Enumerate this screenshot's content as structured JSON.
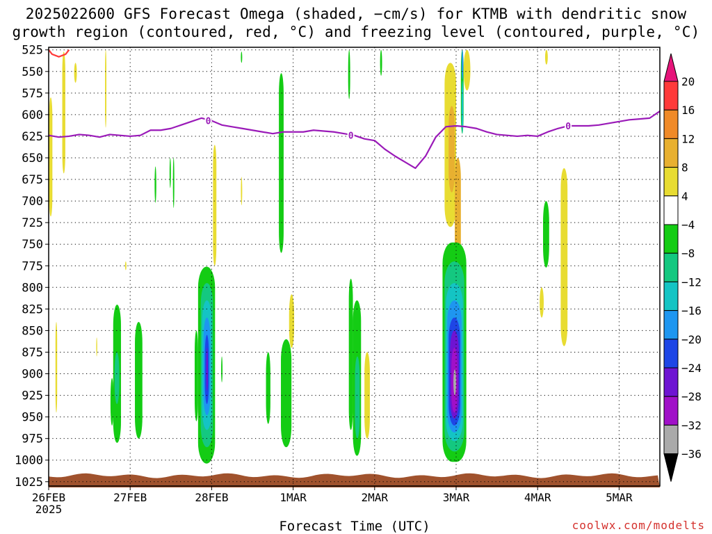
{
  "title": {
    "line1": "2025022600 GFS Forecast Omega (shaded, −cm/s) for KTMB with dendritic snow",
    "line2": "growth region (contoured, red, °C) and freezing level (contoured, purple, °C)"
  },
  "xlabel": "Forecast Time (UTC)",
  "credit": "coolwx.com/modelts",
  "chart_data": {
    "type": "heatmap",
    "title": "2025022600 GFS Forecast Omega (shaded, −cm/s) for KTMB with dendritic snow growth region (contoured, red, °C) and freezing level (contoured, purple, °C)",
    "xlabel": "Forecast Time (UTC)",
    "ylabel": "",
    "y_ticks_hpa": [
      525,
      550,
      575,
      600,
      625,
      650,
      675,
      700,
      725,
      750,
      775,
      800,
      825,
      850,
      875,
      900,
      925,
      950,
      975,
      1000,
      1025
    ],
    "x_ticks": [
      {
        "label": "26FEB",
        "sublabel": "2025",
        "hours": 0
      },
      {
        "label": "27FEB",
        "hours": 24
      },
      {
        "label": "28FEB",
        "hours": 48
      },
      {
        "label": "1MAR",
        "hours": 72
      },
      {
        "label": "2MAR",
        "hours": 96
      },
      {
        "label": "3MAR",
        "hours": 120
      },
      {
        "label": "4MAR",
        "hours": 144
      },
      {
        "label": "5MAR",
        "hours": 168
      }
    ],
    "xlim_hours": [
      0,
      180
    ],
    "ylim_hpa": [
      522,
      1030
    ],
    "grid": true,
    "colorbar": {
      "ticks": [
        20,
        16,
        12,
        8,
        4,
        -4,
        -8,
        -12,
        -16,
        -20,
        -24,
        -28,
        -32,
        -36
      ],
      "bins": [
        {
          "from": 16,
          "to": 20,
          "color": "#ff3a3a"
        },
        {
          "from": 12,
          "to": 16,
          "color": "#f08a28"
        },
        {
          "from": 8,
          "to": 12,
          "color": "#e8b030"
        },
        {
          "from": 4,
          "to": 8,
          "color": "#e8dc32"
        },
        {
          "from": -4,
          "to": 4,
          "color": "#ffffff"
        },
        {
          "from": -8,
          "to": -4,
          "color": "#14cc14"
        },
        {
          "from": -12,
          "to": -8,
          "color": "#14c880"
        },
        {
          "from": -16,
          "to": -12,
          "color": "#14c4c4"
        },
        {
          "from": -20,
          "to": -16,
          "color": "#1e96f0"
        },
        {
          "from": -24,
          "to": -20,
          "color": "#1e46e6"
        },
        {
          "from": -28,
          "to": -24,
          "color": "#6e14d2"
        },
        {
          "from": -32,
          "to": -28,
          "color": "#a010c8"
        },
        {
          "from": -36,
          "to": -32,
          "color": "#aaaaaa"
        }
      ],
      "over_color": "#e6147a",
      "under_color": "#000000"
    },
    "freezing_level": {
      "label": "0",
      "color": "#9a1ab8",
      "hours": [
        0,
        3,
        6,
        9,
        12,
        15,
        18,
        21,
        24,
        27,
        30,
        33,
        36,
        39,
        42,
        45,
        48,
        51,
        54,
        57,
        60,
        63,
        66,
        69,
        72,
        75,
        78,
        81,
        84,
        87,
        90,
        93,
        96,
        99,
        102,
        105,
        108,
        111,
        114,
        117,
        120,
        123,
        126,
        129,
        132,
        135,
        138,
        141,
        144,
        147,
        150,
        153,
        156,
        159,
        162,
        165,
        168,
        171,
        174,
        177,
        180
      ],
      "hpa": [
        624,
        626,
        625,
        623,
        624,
        626,
        623,
        624,
        625,
        624,
        618,
        618,
        616,
        612,
        608,
        604,
        607,
        612,
        614,
        616,
        618,
        620,
        622,
        620,
        620,
        620,
        618,
        619,
        620,
        622,
        624,
        628,
        630,
        640,
        648,
        655,
        662,
        648,
        626,
        614,
        613,
        614,
        616,
        620,
        623,
        624,
        625,
        624,
        625,
        620,
        616,
        613,
        613,
        613,
        612,
        610,
        608,
        606,
        605,
        604,
        596
      ]
    },
    "dendritic_contour": {
      "color": "#ff3a3a",
      "hours": [
        0,
        1,
        3,
        5,
        6
      ],
      "hpa": [
        525,
        530,
        533,
        530,
        525
      ]
    },
    "surface_color": "#a0522d",
    "omega_cells": [
      {
        "h0": 0.1,
        "h1": 1.1,
        "p_top": 580,
        "p_bot": 718,
        "v": 5
      },
      {
        "h0": 4.0,
        "h1": 4.9,
        "p_top": 527,
        "p_bot": 668,
        "v": 5
      },
      {
        "h0": 7.5,
        "h1": 8.3,
        "p_top": 540,
        "p_bot": 563,
        "v": 5
      },
      {
        "h0": 2.0,
        "h1": 2.5,
        "p_top": 840,
        "p_bot": 945,
        "v": 5
      },
      {
        "h0": 16.6,
        "h1": 17.0,
        "p_top": 525,
        "p_bot": 615,
        "v": 5
      },
      {
        "h0": 14.0,
        "h1": 14.3,
        "p_top": 858,
        "p_bot": 880,
        "v": 5
      },
      {
        "h0": 22.5,
        "h1": 22.9,
        "p_top": 770,
        "p_bot": 780,
        "v": 5
      },
      {
        "h0": 31.2,
        "h1": 31.7,
        "p_top": 660,
        "p_bot": 702,
        "v": -5
      },
      {
        "h0": 35.6,
        "h1": 36.0,
        "p_top": 650,
        "p_bot": 685,
        "v": -5
      },
      {
        "h0": 36.6,
        "h1": 37.0,
        "p_top": 650,
        "p_bot": 708,
        "v": -5
      },
      {
        "h0": 18.2,
        "h1": 19.1,
        "p_top": 905,
        "p_bot": 960,
        "v": -5
      },
      {
        "h0": 19.0,
        "h1": 21.3,
        "p_top": 820,
        "p_bot": 980,
        "v": -5
      },
      {
        "h0": 19.4,
        "h1": 20.8,
        "p_top": 875,
        "p_bot": 935,
        "v": -10
      },
      {
        "h0": 25.4,
        "h1": 27.6,
        "p_top": 840,
        "p_bot": 975,
        "v": -5
      },
      {
        "h0": 43.0,
        "h1": 44.0,
        "p_top": 850,
        "p_bot": 955,
        "v": -5
      },
      {
        "h0": 44.0,
        "h1": 49.0,
        "p_top": 776,
        "p_bot": 1004,
        "v": -5
      },
      {
        "h0": 44.8,
        "h1": 48.4,
        "p_top": 795,
        "p_bot": 985,
        "v": -10
      },
      {
        "h0": 45.2,
        "h1": 48.0,
        "p_top": 815,
        "p_bot": 965,
        "v": -14
      },
      {
        "h0": 45.6,
        "h1": 47.6,
        "p_top": 835,
        "p_bot": 948,
        "v": -18
      },
      {
        "h0": 46.0,
        "h1": 47.2,
        "p_top": 855,
        "p_bot": 935,
        "v": -22
      },
      {
        "h0": 46.4,
        "h1": 46.9,
        "p_top": 870,
        "p_bot": 920,
        "v": -26
      },
      {
        "h0": 48.4,
        "h1": 49.4,
        "p_top": 635,
        "p_bot": 775,
        "v": 5
      },
      {
        "h0": 50.8,
        "h1": 51.2,
        "p_top": 880,
        "p_bot": 910,
        "v": -5
      },
      {
        "h0": 56.6,
        "h1": 57.0,
        "p_top": 527,
        "p_bot": 540,
        "v": -5
      },
      {
        "h0": 56.6,
        "h1": 57.0,
        "p_top": 672,
        "p_bot": 705,
        "v": 5
      },
      {
        "h0": 64.0,
        "h1": 65.3,
        "p_top": 875,
        "p_bot": 958,
        "v": -5
      },
      {
        "h0": 67.8,
        "h1": 69.2,
        "p_top": 552,
        "p_bot": 760,
        "v": -5
      },
      {
        "h0": 68.4,
        "h1": 71.5,
        "p_top": 860,
        "p_bot": 985,
        "v": -5
      },
      {
        "h0": 70.8,
        "h1": 72.3,
        "p_top": 808,
        "p_bot": 870,
        "v": 5
      },
      {
        "h0": 88.2,
        "h1": 88.8,
        "p_top": 525,
        "p_bot": 582,
        "v": -5
      },
      {
        "h0": 97.6,
        "h1": 98.2,
        "p_top": 525,
        "p_bot": 555,
        "v": -5
      },
      {
        "h0": 88.4,
        "h1": 89.6,
        "p_top": 790,
        "p_bot": 965,
        "v": -5
      },
      {
        "h0": 89.6,
        "h1": 92.0,
        "p_top": 815,
        "p_bot": 995,
        "v": -5
      },
      {
        "h0": 90.2,
        "h1": 91.6,
        "p_top": 880,
        "p_bot": 975,
        "v": -10
      },
      {
        "h0": 93.0,
        "h1": 94.6,
        "p_top": 875,
        "p_bot": 975,
        "v": 5
      },
      {
        "h0": 116.6,
        "h1": 120.0,
        "p_top": 540,
        "p_bot": 730,
        "v": 5
      },
      {
        "h0": 117.8,
        "h1": 119.6,
        "p_top": 590,
        "p_bot": 690,
        "v": 9
      },
      {
        "h0": 119.6,
        "h1": 121.4,
        "p_top": 650,
        "p_bot": 790,
        "v": 9
      },
      {
        "h0": 121.4,
        "h1": 122.2,
        "p_top": 525,
        "p_bot": 622,
        "v": -5
      },
      {
        "h0": 121.6,
        "h1": 122.1,
        "p_top": 525,
        "p_bot": 560,
        "v": -18
      },
      {
        "h0": 121.6,
        "h1": 122.1,
        "p_top": 560,
        "p_bot": 622,
        "v": -14
      },
      {
        "h0": 122.2,
        "h1": 124.2,
        "p_top": 525,
        "p_bot": 572,
        "v": 5
      },
      {
        "h0": 116.0,
        "h1": 123.0,
        "p_top": 748,
        "p_bot": 1002,
        "v": -5
      },
      {
        "h0": 116.6,
        "h1": 122.4,
        "p_top": 770,
        "p_bot": 990,
        "v": -10
      },
      {
        "h0": 117.0,
        "h1": 122.0,
        "p_top": 795,
        "p_bot": 978,
        "v": -14
      },
      {
        "h0": 117.4,
        "h1": 121.6,
        "p_top": 815,
        "p_bot": 968,
        "v": -18
      },
      {
        "h0": 117.8,
        "h1": 121.2,
        "p_top": 835,
        "p_bot": 960,
        "v": -22
      },
      {
        "h0": 118.2,
        "h1": 120.8,
        "p_top": 850,
        "p_bot": 952,
        "v": -26
      },
      {
        "h0": 118.6,
        "h1": 120.4,
        "p_top": 870,
        "p_bot": 945,
        "v": -30
      },
      {
        "h0": 119.2,
        "h1": 120.0,
        "p_top": 895,
        "p_bot": 925,
        "v": -34
      },
      {
        "h0": 146.2,
        "h1": 147.0,
        "p_top": 525,
        "p_bot": 542,
        "v": 5
      },
      {
        "h0": 145.6,
        "h1": 147.4,
        "p_top": 700,
        "p_bot": 777,
        "v": -5
      },
      {
        "h0": 144.6,
        "h1": 145.8,
        "p_top": 800,
        "p_bot": 835,
        "v": 5
      },
      {
        "h0": 150.8,
        "h1": 152.8,
        "p_top": 662,
        "p_bot": 868,
        "v": 5
      }
    ]
  }
}
